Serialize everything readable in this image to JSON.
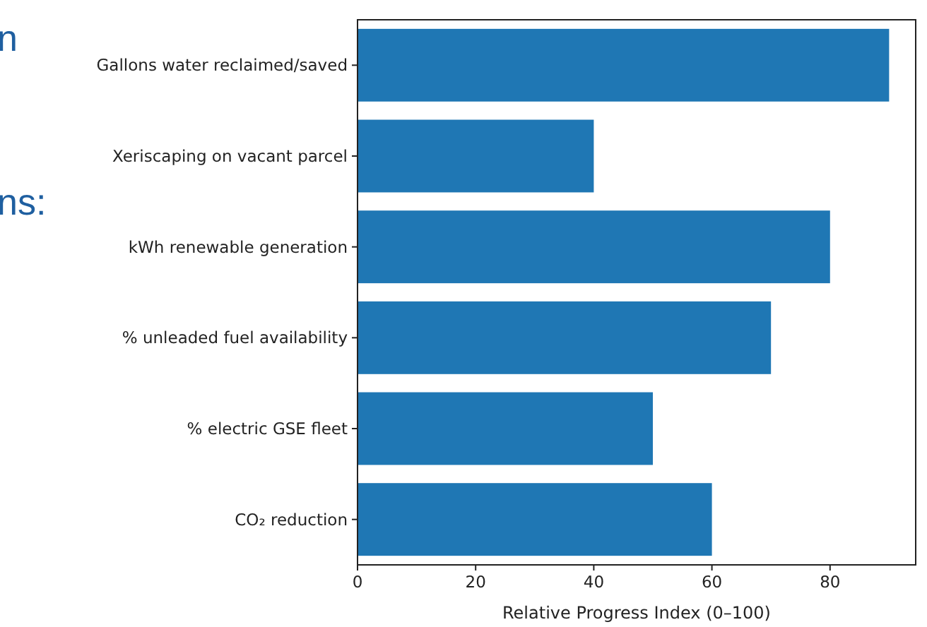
{
  "chart_data": {
    "type": "bar",
    "orientation": "horizontal",
    "xlabel": "Relative Progress Index (0–100)",
    "categories": [
      "Gallons water reclaimed/saved",
      "Xeriscaping on vacant parcel",
      "kWh renewable generation",
      "% unleaded fuel availability",
      "% electric GSE fleet",
      "CO₂ reduction"
    ],
    "values": [
      90,
      40,
      80,
      70,
      50,
      60
    ],
    "color": "#1f77b4",
    "xlim": [
      0,
      94.5
    ],
    "xticks": [
      0,
      20,
      40,
      60,
      80
    ],
    "grid": false,
    "annotations": [
      "n",
      "ns:"
    ]
  }
}
